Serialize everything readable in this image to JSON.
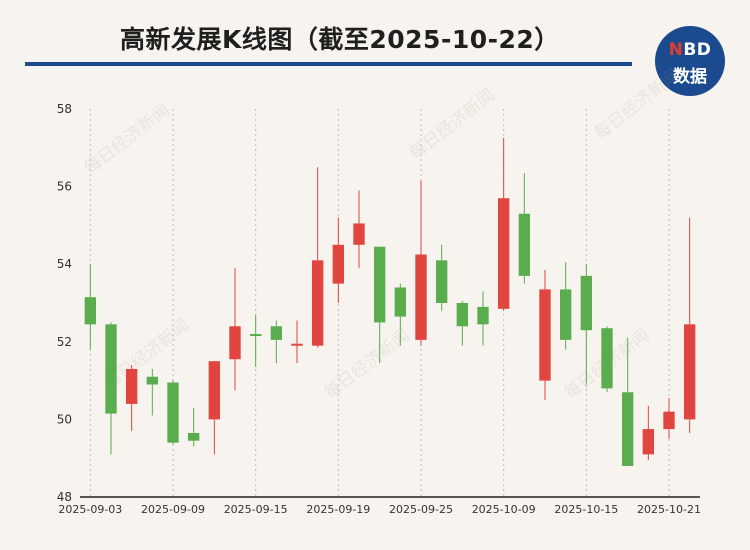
{
  "header": {
    "title": "高新发展K线图（截至2025-10-22）",
    "logo_top": "NBD",
    "logo_bottom": "数据",
    "watermark": "每日经济新闻"
  },
  "colors": {
    "up": "#e04540",
    "down": "#5aad4e",
    "accent": "#1b4a8e",
    "background": "#f7f3ee"
  },
  "chart_data": {
    "type": "candlestick",
    "title": "高新发展K线图（截至2025-10-22）",
    "ylim": [
      48,
      58
    ],
    "yticks": [
      48,
      50,
      52,
      54,
      56,
      58
    ],
    "grid": "vertical-dashed",
    "xtick_labels": [
      {
        "index": 0,
        "label": "2025-09-03"
      },
      {
        "index": 4,
        "label": "2025-09-09"
      },
      {
        "index": 8,
        "label": "2025-09-15"
      },
      {
        "index": 12,
        "label": "2025-09-19"
      },
      {
        "index": 16,
        "label": "2025-09-25"
      },
      {
        "index": 20,
        "label": "2025-10-09"
      },
      {
        "index": 24,
        "label": "2025-10-15"
      },
      {
        "index": 28,
        "label": "2025-10-21"
      }
    ],
    "candles": [
      {
        "open": 53.15,
        "close": 52.45,
        "high": 54.0,
        "low": 51.8
      },
      {
        "open": 52.45,
        "close": 50.15,
        "high": 52.5,
        "low": 49.1
      },
      {
        "open": 50.4,
        "close": 51.3,
        "high": 51.4,
        "low": 49.7
      },
      {
        "open": 51.1,
        "close": 50.9,
        "high": 51.3,
        "low": 50.1
      },
      {
        "open": 50.95,
        "close": 49.4,
        "high": 51.0,
        "low": 49.35
      },
      {
        "open": 49.65,
        "close": 49.45,
        "high": 50.3,
        "low": 49.3
      },
      {
        "open": 50.0,
        "close": 51.5,
        "high": 51.5,
        "low": 49.1
      },
      {
        "open": 51.55,
        "close": 52.4,
        "high": 53.9,
        "low": 50.75
      },
      {
        "open": 52.2,
        "close": 52.15,
        "high": 52.7,
        "low": 51.35
      },
      {
        "open": 52.4,
        "close": 52.05,
        "high": 52.55,
        "low": 51.45
      },
      {
        "open": 51.9,
        "close": 51.95,
        "high": 52.55,
        "low": 51.45
      },
      {
        "open": 51.9,
        "close": 54.1,
        "high": 56.5,
        "low": 51.85
      },
      {
        "open": 53.5,
        "close": 54.5,
        "high": 55.2,
        "low": 53.0
      },
      {
        "open": 54.5,
        "close": 55.05,
        "high": 55.9,
        "low": 53.9
      },
      {
        "open": 54.45,
        "close": 52.5,
        "high": 54.45,
        "low": 51.45
      },
      {
        "open": 53.4,
        "close": 52.65,
        "high": 53.5,
        "low": 51.9
      },
      {
        "open": 52.05,
        "close": 54.25,
        "high": 56.15,
        "low": 51.9
      },
      {
        "open": 54.1,
        "close": 53.0,
        "high": 54.5,
        "low": 52.8
      },
      {
        "open": 53.0,
        "close": 52.4,
        "high": 53.05,
        "low": 51.9
      },
      {
        "open": 52.9,
        "close": 52.45,
        "high": 53.3,
        "low": 51.9
      },
      {
        "open": 52.85,
        "close": 55.7,
        "high": 57.25,
        "low": 52.8
      },
      {
        "open": 55.3,
        "close": 53.7,
        "high": 56.35,
        "low": 53.5
      },
      {
        "open": 51.0,
        "close": 53.35,
        "high": 53.85,
        "low": 50.5
      },
      {
        "open": 53.35,
        "close": 52.05,
        "high": 54.05,
        "low": 51.8
      },
      {
        "open": 53.7,
        "close": 52.3,
        "high": 54.0,
        "low": 50.9
      },
      {
        "open": 52.35,
        "close": 50.8,
        "high": 52.4,
        "low": 50.7
      },
      {
        "open": 50.7,
        "close": 48.8,
        "high": 52.1,
        "low": 48.8
      },
      {
        "open": 49.1,
        "close": 49.75,
        "high": 50.35,
        "low": 48.95
      },
      {
        "open": 49.75,
        "close": 50.2,
        "high": 50.55,
        "low": 49.5
      },
      {
        "open": 50.0,
        "close": 52.45,
        "high": 55.2,
        "low": 49.65
      }
    ]
  }
}
